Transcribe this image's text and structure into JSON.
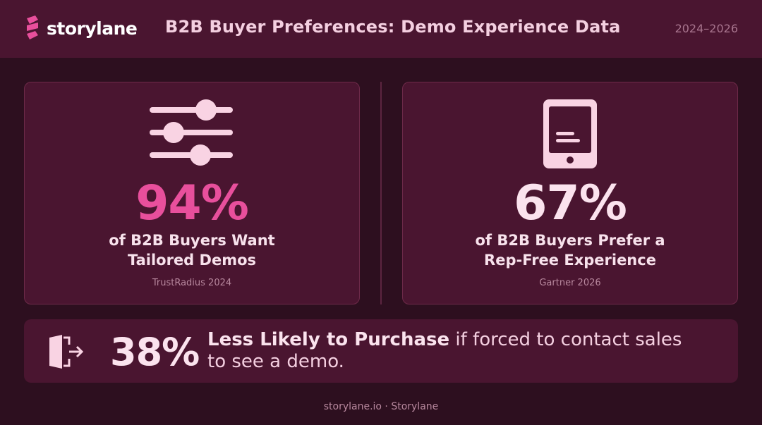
{
  "header": {
    "brand": "storylane",
    "title": "B2B Buyer Preferences: Demo Experience Data",
    "date_range": "2024–2026"
  },
  "stats": [
    {
      "value": "94%",
      "description_line1": "of B2B Buyers Want",
      "description_line2": "Tailored Demos",
      "source": "TrustRadius 2024",
      "icon": "sliders-icon",
      "value_color": "#e84f9c"
    },
    {
      "value": "67%",
      "description_line1": "of B2B Buyers Prefer a",
      "description_line2": "Rep-Free Experience",
      "source": "Gartner 2026",
      "icon": "tablet-icon",
      "value_color": "#fbe3ee"
    }
  ],
  "banner": {
    "value": "38%",
    "bold_text": "Less Likely to Purchase",
    "rest_text": " if forced to contact sales",
    "line2": "to see a demo.",
    "icon": "exit-icon"
  },
  "footer": {
    "text": "storylane.io · Storylane"
  },
  "colors": {
    "background": "#2d0f1f",
    "panel": "#4a1530",
    "accent": "#e84f9c",
    "icon_fill": "#f9d3e3"
  }
}
